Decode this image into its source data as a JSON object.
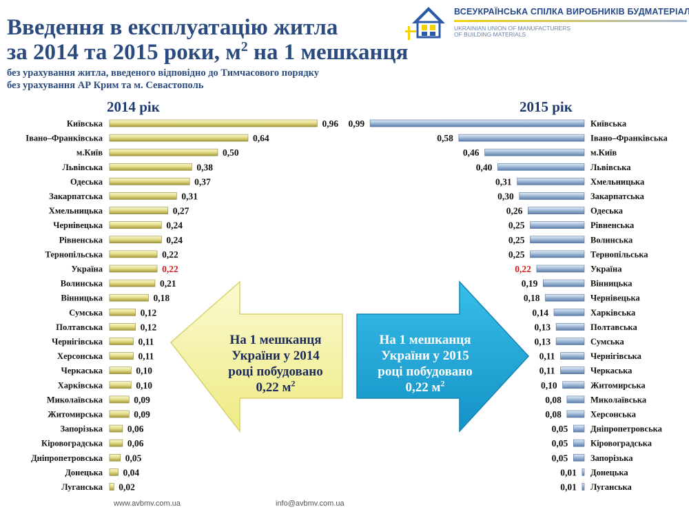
{
  "header": {
    "title_line1": "Введення в експлуатацію житла",
    "title_line2": "за 2014 та 2015 роки, м",
    "title_sup": "2",
    "title_line2_tail": " на 1 мешканця",
    "subtitle_1": "без урахування житла, введеного відповідно до Тимчасового порядку",
    "subtitle_2": "без урахування АР Крим та м. Севастополь"
  },
  "organization": {
    "name_ua": "ВСЕУКРАЇНСЬКА СПІЛКА ВИРОБНИКІВ БУДМАТЕРІАЛІВ",
    "name_en_1": "UKRAINIAN UNION OF MANUFACTURERS",
    "name_en_2": "OF BUILDING MATERIALS"
  },
  "callouts": {
    "left": {
      "line1": "На 1 мешканця",
      "line2": "України у 2014",
      "line3": "році побудовано",
      "line4": "0,22 м",
      "sup": "2"
    },
    "right": {
      "line1": "На 1 мешканця",
      "line2": "України у 2015",
      "line3": "році побудовано",
      "line4": "0,22 м",
      "sup": "2"
    }
  },
  "footer": {
    "website": "www.avbmv.com.ua",
    "email": "info@avbmv.com.ua"
  },
  "colors": {
    "bar_2014": "#e6df8c",
    "bar_2015": "#a4bcd9",
    "highlight": "#cc1f1f",
    "arrow_left": "#f6f3a0",
    "arrow_right": "#1fa7d8"
  },
  "chart_data": [
    {
      "type": "bar",
      "orientation": "horizontal",
      "title": "2014 рік",
      "direction": "left-to-right",
      "categories": [
        "Київська",
        "Івано–Франківська",
        "м.Київ",
        "Львівська",
        "Одеська",
        "Закарпатська",
        "Хмельницька",
        "Чернівецька",
        "Рівненська",
        "Тернопільська",
        "Україна",
        "Волинська",
        "Вінницька",
        "Сумська",
        "Полтавська",
        "Чернігівська",
        "Херсонська",
        "Черкаська",
        "Харківська",
        "Миколаївська",
        "Житомирська",
        "Запорізька",
        "Кіровоградська",
        "Дніпропетровська",
        "Донецька",
        "Луганська"
      ],
      "values": [
        0.96,
        0.64,
        0.5,
        0.38,
        0.37,
        0.31,
        0.27,
        0.24,
        0.24,
        0.22,
        0.22,
        0.21,
        0.18,
        0.12,
        0.12,
        0.11,
        0.11,
        0.1,
        0.1,
        0.09,
        0.09,
        0.06,
        0.06,
        0.05,
        0.04,
        0.02
      ],
      "labels": [
        "0,96",
        "0,64",
        "0,50",
        "0,38",
        "0,37",
        "0,31",
        "0,27",
        "0,24",
        "0,24",
        "0,22",
        "0,22",
        "0,21",
        "0,18",
        "0,12",
        "0,12",
        "0,11",
        "0,11",
        "0,10",
        "0,10",
        "0,09",
        "0,09",
        "0,06",
        "0,06",
        "0,05",
        "0,04",
        "0,02"
      ],
      "highlight": "Україна",
      "xlim": [
        0,
        1.0
      ]
    },
    {
      "type": "bar",
      "orientation": "horizontal",
      "title": "2015 рік",
      "direction": "right-to-left",
      "categories": [
        "Київська",
        "Івано–Франківська",
        "м.Київ",
        "Львівська",
        "Хмельницька",
        "Закарпатська",
        "Одеська",
        "Рівненська",
        "Волинська",
        "Тернопільська",
        "Україна",
        "Вінницька",
        "Чернівецька",
        "Харківська",
        "Полтавська",
        "Сумська",
        "Чернігівська",
        "Черкаська",
        "Житомирська",
        "Миколаївська",
        "Херсонська",
        "Дніпропетровська",
        "Кіровоградська",
        "Запорізька",
        "Донецька",
        "Луганська"
      ],
      "values": [
        0.99,
        0.58,
        0.46,
        0.4,
        0.31,
        0.3,
        0.26,
        0.25,
        0.25,
        0.25,
        0.22,
        0.19,
        0.18,
        0.14,
        0.13,
        0.13,
        0.11,
        0.11,
        0.1,
        0.08,
        0.08,
        0.05,
        0.05,
        0.05,
        0.01,
        0.01
      ],
      "labels": [
        "0,99",
        "0,58",
        "0,46",
        "0,40",
        "0,31",
        "0,30",
        "0,26",
        "0,25",
        "0,25",
        "0,25",
        "0,22",
        "0,19",
        "0,18",
        "0,14",
        "0,13",
        "0,13",
        "0,11",
        "0,11",
        "0,10",
        "0,08",
        "0,08",
        "0,05",
        "0,05",
        "0,05",
        "0,01",
        "0,01"
      ],
      "highlight": "Україна",
      "xlim": [
        0,
        1.0
      ]
    }
  ]
}
